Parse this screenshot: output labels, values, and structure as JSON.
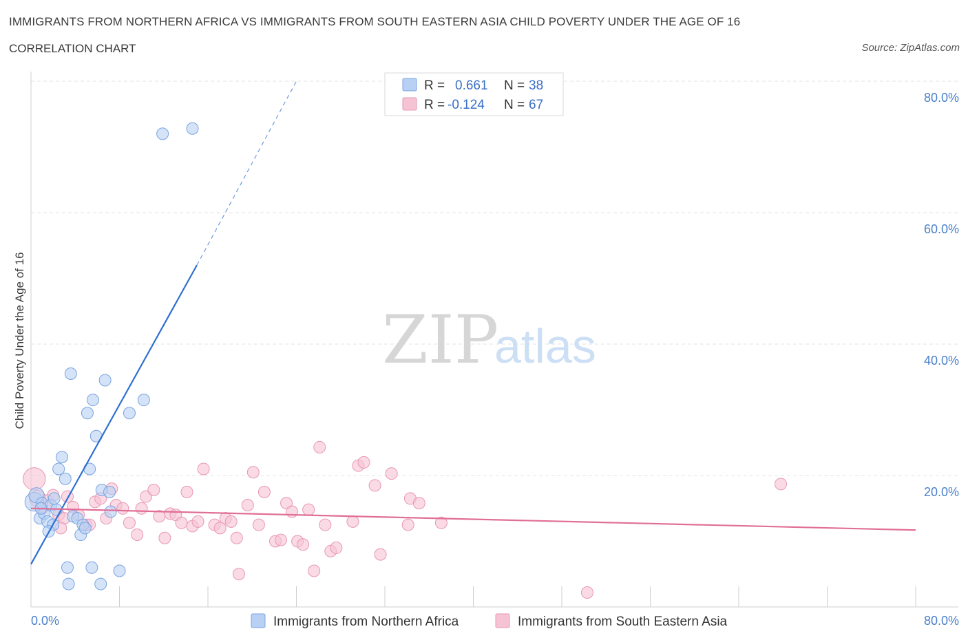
{
  "header": {
    "title": "IMMIGRANTS FROM NORTHERN AFRICA VS IMMIGRANTS FROM SOUTH EASTERN ASIA CHILD POVERTY UNDER THE AGE OF 16",
    "subtitle": "CORRELATION CHART",
    "source": "Source: ZipAtlas.com"
  },
  "watermark": {
    "zip": "ZIP",
    "atlas": "atlas"
  },
  "legend": {
    "r_label": "R =",
    "n_label": "N =",
    "series1": {
      "r": "0.661",
      "n": "38"
    },
    "series2": {
      "r": "-0.124",
      "n": "67"
    }
  },
  "colors": {
    "blue_fill": "#b8d0f4",
    "blue_stroke": "#7aa3e0",
    "blue_line": "#2e6fd0",
    "pink_fill": "#f6c3d4",
    "pink_stroke": "#e897b3",
    "pink_line": "#e06e97",
    "grid": "#e3e3e3",
    "tick_text": "#4a7fc9"
  },
  "chart_data": {
    "type": "scatter",
    "xlabel": "",
    "ylabel": "Child Poverty Under the Age of 16",
    "xlim": [
      0,
      80
    ],
    "ylim": [
      0,
      80
    ],
    "x_tick_labels": [
      "0.0%",
      "80.0%"
    ],
    "y_ticks": [
      20,
      40,
      60,
      80
    ],
    "y_tick_labels": [
      "20.0%",
      "40.0%",
      "60.0%",
      "80.0%"
    ],
    "grid": true,
    "legend_position": "top-center",
    "series": [
      {
        "name": "Immigrants from Northern Africa",
        "color": "#b8d0f4",
        "r": 0.661,
        "n": 38,
        "trend": {
          "x": [
            0,
            15,
            24
          ],
          "y": [
            6.5,
            52.0,
            80.0
          ]
        },
        "points": [
          {
            "x": 0.3,
            "y": 16.0,
            "s": 1.6
          },
          {
            "x": 0.5,
            "y": 17.0,
            "s": 1.3
          },
          {
            "x": 0.8,
            "y": 13.5
          },
          {
            "x": 1.0,
            "y": 15.8
          },
          {
            "x": 1.2,
            "y": 14.2
          },
          {
            "x": 1.5,
            "y": 13.0
          },
          {
            "x": 1.8,
            "y": 15.5
          },
          {
            "x": 2.0,
            "y": 12.5
          },
          {
            "x": 2.3,
            "y": 14.8
          },
          {
            "x": 2.5,
            "y": 21.0
          },
          {
            "x": 2.8,
            "y": 22.8
          },
          {
            "x": 3.1,
            "y": 19.5
          },
          {
            "x": 3.3,
            "y": 6.0
          },
          {
            "x": 3.4,
            "y": 3.5
          },
          {
            "x": 3.6,
            "y": 35.5
          },
          {
            "x": 3.8,
            "y": 13.8
          },
          {
            "x": 4.2,
            "y": 13.5
          },
          {
            "x": 4.5,
            "y": 11.0
          },
          {
            "x": 4.7,
            "y": 12.5
          },
          {
            "x": 5.1,
            "y": 29.5
          },
          {
            "x": 5.3,
            "y": 21.0
          },
          {
            "x": 5.5,
            "y": 6.0
          },
          {
            "x": 5.6,
            "y": 31.5
          },
          {
            "x": 5.9,
            "y": 26.0
          },
          {
            "x": 6.3,
            "y": 3.5
          },
          {
            "x": 6.4,
            "y": 17.8
          },
          {
            "x": 6.7,
            "y": 34.5
          },
          {
            "x": 7.1,
            "y": 17.5
          },
          {
            "x": 7.2,
            "y": 14.5
          },
          {
            "x": 8.0,
            "y": 5.5
          },
          {
            "x": 8.9,
            "y": 29.5
          },
          {
            "x": 10.2,
            "y": 31.5
          },
          {
            "x": 11.9,
            "y": 72.0
          },
          {
            "x": 14.6,
            "y": 72.8
          },
          {
            "x": 1.6,
            "y": 11.5
          },
          {
            "x": 2.1,
            "y": 16.5
          },
          {
            "x": 0.9,
            "y": 15.0
          },
          {
            "x": 4.9,
            "y": 12.0
          }
        ]
      },
      {
        "name": "Immigrants from South Eastern Asia",
        "color": "#f6c3d4",
        "r": -0.124,
        "n": 67,
        "trend": {
          "x": [
            0,
            80
          ],
          "y": [
            15.0,
            11.7
          ]
        },
        "points": [
          {
            "x": 0.3,
            "y": 19.5,
            "s": 1.9
          },
          {
            "x": 0.6,
            "y": 16.5,
            "s": 1.4
          },
          {
            "x": 1.0,
            "y": 15.0
          },
          {
            "x": 1.5,
            "y": 16.2
          },
          {
            "x": 2.0,
            "y": 17.0
          },
          {
            "x": 2.5,
            "y": 14.0
          },
          {
            "x": 3.0,
            "y": 13.5
          },
          {
            "x": 3.3,
            "y": 16.8
          },
          {
            "x": 3.8,
            "y": 15.2
          },
          {
            "x": 4.3,
            "y": 14.0
          },
          {
            "x": 5.0,
            "y": 12.5
          },
          {
            "x": 5.3,
            "y": 12.5
          },
          {
            "x": 5.8,
            "y": 16.0
          },
          {
            "x": 6.3,
            "y": 16.5
          },
          {
            "x": 6.8,
            "y": 13.5
          },
          {
            "x": 7.3,
            "y": 18.0
          },
          {
            "x": 7.7,
            "y": 15.5
          },
          {
            "x": 8.3,
            "y": 15.0
          },
          {
            "x": 8.9,
            "y": 12.8
          },
          {
            "x": 9.6,
            "y": 11.0
          },
          {
            "x": 10.0,
            "y": 15.0
          },
          {
            "x": 10.4,
            "y": 16.8
          },
          {
            "x": 11.1,
            "y": 17.8
          },
          {
            "x": 11.6,
            "y": 13.8
          },
          {
            "x": 12.1,
            "y": 10.5
          },
          {
            "x": 12.6,
            "y": 14.2
          },
          {
            "x": 13.1,
            "y": 14.0
          },
          {
            "x": 13.6,
            "y": 12.8
          },
          {
            "x": 14.1,
            "y": 17.5
          },
          {
            "x": 14.6,
            "y": 12.3
          },
          {
            "x": 15.1,
            "y": 13.0
          },
          {
            "x": 15.6,
            "y": 21.0
          },
          {
            "x": 16.6,
            "y": 12.5
          },
          {
            "x": 17.1,
            "y": 12.0
          },
          {
            "x": 17.6,
            "y": 13.5
          },
          {
            "x": 18.1,
            "y": 13.0
          },
          {
            "x": 18.6,
            "y": 10.5
          },
          {
            "x": 18.8,
            "y": 5.0
          },
          {
            "x": 19.6,
            "y": 15.5
          },
          {
            "x": 20.1,
            "y": 20.5
          },
          {
            "x": 20.6,
            "y": 12.5
          },
          {
            "x": 21.1,
            "y": 17.5
          },
          {
            "x": 22.1,
            "y": 10.0
          },
          {
            "x": 22.6,
            "y": 10.2
          },
          {
            "x": 23.1,
            "y": 15.8
          },
          {
            "x": 23.6,
            "y": 14.5
          },
          {
            "x": 24.1,
            "y": 10.0
          },
          {
            "x": 24.6,
            "y": 9.5
          },
          {
            "x": 25.1,
            "y": 14.8
          },
          {
            "x": 25.6,
            "y": 5.5
          },
          {
            "x": 26.1,
            "y": 24.3
          },
          {
            "x": 26.6,
            "y": 12.5
          },
          {
            "x": 27.1,
            "y": 8.5
          },
          {
            "x": 27.6,
            "y": 9.0
          },
          {
            "x": 29.1,
            "y": 13.0
          },
          {
            "x": 29.6,
            "y": 21.5
          },
          {
            "x": 30.1,
            "y": 22.0
          },
          {
            "x": 31.1,
            "y": 18.5
          },
          {
            "x": 31.6,
            "y": 8.0
          },
          {
            "x": 32.6,
            "y": 20.3
          },
          {
            "x": 34.1,
            "y": 12.5
          },
          {
            "x": 34.3,
            "y": 16.5
          },
          {
            "x": 35.1,
            "y": 15.8
          },
          {
            "x": 37.1,
            "y": 12.8
          },
          {
            "x": 50.3,
            "y": 2.2
          },
          {
            "x": 67.8,
            "y": 18.7
          },
          {
            "x": 2.7,
            "y": 12.0
          }
        ]
      }
    ]
  }
}
